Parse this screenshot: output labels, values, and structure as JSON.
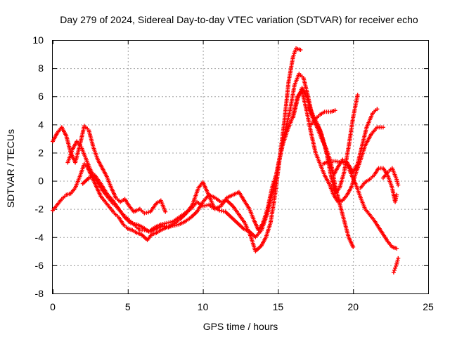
{
  "chart_data": {
    "type": "scatter",
    "title": "Day 279 of 2024, Sidereal Day-to-day VTEC variation (SDTVAR) for receiver echo",
    "xlabel": "GPS time / hours",
    "ylabel": "SDTVAR / TECUs",
    "xlim": [
      0,
      25
    ],
    "ylim": [
      -8,
      10
    ],
    "xticks": [
      0,
      5,
      10,
      15,
      20,
      25
    ],
    "yticks": [
      -8,
      -6,
      -4,
      -2,
      0,
      2,
      4,
      6,
      8,
      10
    ],
    "grid": true,
    "marker": "+",
    "series": [
      {
        "name": "SDTVAR",
        "color": "#ff0000",
        "tracks": [
          [
            [
              0.0,
              2.8
            ],
            [
              0.3,
              3.4
            ],
            [
              0.6,
              3.8
            ],
            [
              0.9,
              3.2
            ],
            [
              1.2,
              2.0
            ],
            [
              1.5,
              1.3
            ],
            [
              1.8,
              2.5
            ],
            [
              2.1,
              3.9
            ],
            [
              2.4,
              3.6
            ],
            [
              2.7,
              2.4
            ],
            [
              3.0,
              1.5
            ],
            [
              3.3,
              0.9
            ],
            [
              3.6,
              0.3
            ],
            [
              3.9,
              -0.5
            ],
            [
              4.2,
              -1.2
            ],
            [
              4.5,
              -1.5
            ],
            [
              4.8,
              -1.3
            ],
            [
              5.1,
              -1.8
            ],
            [
              5.4,
              -2.2
            ],
            [
              5.8,
              -2.0
            ],
            [
              6.1,
              -2.3
            ],
            [
              6.5,
              -2.2
            ],
            [
              6.9,
              -1.6
            ],
            [
              7.2,
              -1.4
            ],
            [
              7.5,
              -2.2
            ]
          ],
          [
            [
              0.0,
              -2.1
            ],
            [
              0.3,
              -1.7
            ],
            [
              0.6,
              -1.3
            ],
            [
              0.9,
              -1.0
            ],
            [
              1.2,
              -0.9
            ],
            [
              1.5,
              -0.5
            ],
            [
              1.8,
              0.3
            ],
            [
              2.1,
              1.2
            ],
            [
              2.3,
              1.0
            ],
            [
              2.6,
              0.3
            ],
            [
              2.9,
              -0.4
            ],
            [
              3.2,
              -1.1
            ],
            [
              3.5,
              -1.5
            ],
            [
              3.8,
              -1.9
            ],
            [
              4.1,
              -2.3
            ],
            [
              4.4,
              -2.6
            ],
            [
              4.7,
              -3.1
            ],
            [
              5.0,
              -3.4
            ],
            [
              5.3,
              -3.5
            ],
            [
              5.6,
              -3.7
            ],
            [
              5.9,
              -3.8
            ],
            [
              6.3,
              -4.2
            ],
            [
              6.6,
              -3.8
            ],
            [
              6.9,
              -3.7
            ],
            [
              7.2,
              -3.5
            ],
            [
              7.6,
              -3.3
            ],
            [
              8.0,
              -3.2
            ],
            [
              8.4,
              -3.1
            ],
            [
              8.8,
              -2.9
            ],
            [
              9.2,
              -2.6
            ],
            [
              9.6,
              -2.2
            ],
            [
              10.0,
              -1.5
            ],
            [
              10.4,
              -1.0
            ],
            [
              10.8,
              -1.2
            ],
            [
              11.2,
              -1.5
            ],
            [
              11.6,
              -1.4
            ],
            [
              12.0,
              -1.8
            ],
            [
              12.4,
              -2.4
            ],
            [
              12.8,
              -3.0
            ],
            [
              13.2,
              -4.0
            ],
            [
              13.5,
              -5.0
            ],
            [
              13.9,
              -4.6
            ],
            [
              14.2,
              -4.0
            ],
            [
              14.5,
              -3.0
            ],
            [
              14.8,
              -1.0
            ],
            [
              15.1,
              1.5
            ],
            [
              15.4,
              4.0
            ],
            [
              15.7,
              7.0
            ],
            [
              16.0,
              8.8
            ],
            [
              16.2,
              9.4
            ],
            [
              16.5,
              9.3
            ]
          ],
          [
            [
              1.0,
              1.3
            ],
            [
              1.3,
              2.2
            ],
            [
              1.6,
              2.8
            ],
            [
              1.9,
              2.4
            ],
            [
              2.2,
              1.6
            ],
            [
              2.5,
              0.8
            ],
            [
              2.8,
              0.2
            ],
            [
              3.1,
              -0.3
            ],
            [
              3.4,
              -0.8
            ],
            [
              3.7,
              -1.2
            ],
            [
              4.0,
              -1.6
            ],
            [
              4.3,
              -1.9
            ],
            [
              4.6,
              -2.3
            ],
            [
              4.9,
              -2.6
            ],
            [
              5.2,
              -2.9
            ],
            [
              5.5,
              -3.2
            ],
            [
              5.8,
              -3.5
            ],
            [
              6.1,
              -3.5
            ],
            [
              6.5,
              -3.6
            ],
            [
              6.9,
              -3.4
            ],
            [
              7.3,
              -3.2
            ],
            [
              7.7,
              -3.3
            ],
            [
              8.1,
              -3.0
            ],
            [
              8.5,
              -2.7
            ],
            [
              8.9,
              -2.3
            ],
            [
              9.3,
              -1.7
            ],
            [
              9.7,
              -0.5
            ],
            [
              10.0,
              -0.1
            ],
            [
              10.3,
              -0.8
            ],
            [
              10.7,
              -1.8
            ],
            [
              11.1,
              -2.1
            ],
            [
              11.5,
              -2.2
            ],
            [
              11.9,
              -2.6
            ],
            [
              12.3,
              -3.0
            ],
            [
              12.7,
              -3.4
            ],
            [
              13.1,
              -3.6
            ],
            [
              13.5,
              -4.0
            ],
            [
              13.9,
              -3.5
            ],
            [
              14.3,
              -2.3
            ],
            [
              14.7,
              -0.5
            ],
            [
              15.1,
              1.6
            ],
            [
              15.4,
              3.2
            ],
            [
              15.8,
              5.0
            ],
            [
              16.1,
              6.8
            ],
            [
              16.4,
              7.6
            ],
            [
              16.7,
              7.3
            ],
            [
              17.0,
              6.0
            ],
            [
              17.3,
              4.5
            ],
            [
              17.6,
              3.8
            ],
            [
              17.9,
              3.0
            ],
            [
              18.2,
              2.3
            ],
            [
              18.5,
              1.4
            ],
            [
              18.8,
              -0.3
            ],
            [
              19.1,
              -1.6
            ],
            [
              19.4,
              -2.8
            ],
            [
              19.7,
              -4.0
            ],
            [
              20.0,
              -4.7
            ]
          ],
          [
            [
              2.0,
              -0.2
            ],
            [
              2.4,
              0.2
            ],
            [
              2.8,
              0.4
            ],
            [
              3.2,
              -0.2
            ],
            [
              3.6,
              -0.9
            ],
            [
              4.0,
              -1.4
            ],
            [
              4.4,
              -2.0
            ],
            [
              4.8,
              -2.6
            ],
            [
              5.2,
              -3.0
            ],
            [
              5.6,
              -3.1
            ],
            [
              6.0,
              -3.3
            ],
            [
              6.4,
              -3.6
            ],
            [
              6.8,
              -3.3
            ],
            [
              7.2,
              -3.1
            ],
            [
              7.6,
              -3.0
            ],
            [
              8.0,
              -2.9
            ],
            [
              8.4,
              -2.6
            ],
            [
              8.8,
              -2.3
            ],
            [
              9.2,
              -2.0
            ],
            [
              9.6,
              -1.5
            ],
            [
              10.0,
              -1.8
            ],
            [
              10.4,
              -1.7
            ],
            [
              10.8,
              -2.0
            ],
            [
              11.2,
              -1.8
            ],
            [
              11.6,
              -1.2
            ],
            [
              12.0,
              -1.0
            ],
            [
              12.4,
              -0.8
            ],
            [
              12.8,
              -1.5
            ],
            [
              13.1,
              -2.0
            ],
            [
              13.4,
              -2.8
            ],
            [
              13.7,
              -3.5
            ],
            [
              14.0,
              -3.0
            ],
            [
              14.3,
              -2.0
            ],
            [
              14.6,
              -0.5
            ],
            [
              14.9,
              0.5
            ],
            [
              15.3,
              2.5
            ],
            [
              15.6,
              3.5
            ],
            [
              16.0,
              4.6
            ],
            [
              16.3,
              6.0
            ],
            [
              16.6,
              6.4
            ],
            [
              16.9,
              5.0
            ],
            [
              17.2,
              3.4
            ],
            [
              17.5,
              2.0
            ],
            [
              17.8,
              1.2
            ],
            [
              18.1,
              0.4
            ],
            [
              18.4,
              -0.2
            ],
            [
              18.7,
              -1.0
            ],
            [
              19.0,
              -1.5
            ],
            [
              19.3,
              -1.4
            ],
            [
              19.6,
              -1.0
            ],
            [
              19.9,
              -0.4
            ],
            [
              20.2,
              0.6
            ],
            [
              20.5,
              1.5
            ],
            [
              20.8,
              2.5
            ],
            [
              21.2,
              3.3
            ],
            [
              21.6,
              3.8
            ],
            [
              22.0,
              3.8
            ]
          ],
          [
            [
              16.0,
              4.5
            ],
            [
              16.3,
              5.8
            ],
            [
              16.6,
              6.6
            ],
            [
              16.9,
              6.0
            ],
            [
              17.2,
              5.0
            ],
            [
              17.5,
              4.2
            ],
            [
              17.8,
              3.6
            ],
            [
              18.1,
              2.5
            ],
            [
              18.4,
              1.3
            ],
            [
              18.7,
              0.4
            ],
            [
              19.0,
              1.0
            ],
            [
              19.3,
              1.5
            ],
            [
              19.6,
              1.2
            ],
            [
              19.9,
              0.4
            ],
            [
              20.2,
              -0.3
            ],
            [
              20.5,
              -1.2
            ],
            [
              20.8,
              -2.0
            ],
            [
              21.1,
              -2.4
            ],
            [
              21.4,
              -2.8
            ],
            [
              21.7,
              -3.3
            ],
            [
              22.0,
              -3.8
            ],
            [
              22.3,
              -4.3
            ],
            [
              22.6,
              -4.7
            ],
            [
              22.9,
              -4.8
            ]
          ],
          [
            [
              17.0,
              5.2
            ],
            [
              17.3,
              4.6
            ],
            [
              17.6,
              4.1
            ],
            [
              17.9,
              3.3
            ],
            [
              18.2,
              2.2
            ],
            [
              18.5,
              0.5
            ],
            [
              18.8,
              -0.9
            ],
            [
              19.1,
              -0.5
            ],
            [
              19.4,
              0.6
            ],
            [
              19.7,
              2.4
            ],
            [
              20.0,
              4.5
            ],
            [
              20.3,
              6.1
            ]
          ],
          [
            [
              17.2,
              4.0
            ],
            [
              17.5,
              4.4
            ],
            [
              17.8,
              4.7
            ],
            [
              18.1,
              4.9
            ],
            [
              18.5,
              4.9
            ],
            [
              18.8,
              5.0
            ]
          ],
          [
            [
              18.0,
              1.2
            ],
            [
              18.4,
              1.4
            ],
            [
              18.8,
              1.4
            ],
            [
              19.2,
              1.3
            ],
            [
              19.6,
              1.3
            ],
            [
              20.0,
              0.6
            ],
            [
              20.3,
              1.2
            ],
            [
              20.6,
              2.5
            ],
            [
              20.9,
              3.8
            ],
            [
              21.3,
              4.8
            ],
            [
              21.6,
              5.1
            ]
          ],
          [
            [
              20.5,
              -0.5
            ],
            [
              20.8,
              -0.1
            ],
            [
              21.1,
              0.1
            ],
            [
              21.4,
              0.4
            ],
            [
              21.7,
              0.9
            ],
            [
              22.0,
              0.9
            ],
            [
              22.3,
              0.4
            ],
            [
              22.6,
              -0.5
            ],
            [
              22.8,
              -1.5
            ],
            [
              22.9,
              -1.0
            ]
          ],
          [
            [
              22.0,
              0.2
            ],
            [
              22.3,
              0.6
            ],
            [
              22.6,
              0.9
            ],
            [
              22.9,
              0.1
            ],
            [
              23.0,
              -0.3
            ]
          ],
          [
            [
              22.7,
              -6.5
            ],
            [
              22.8,
              -6.2
            ],
            [
              22.9,
              -5.9
            ],
            [
              23.0,
              -5.5
            ]
          ]
        ]
      }
    ]
  }
}
